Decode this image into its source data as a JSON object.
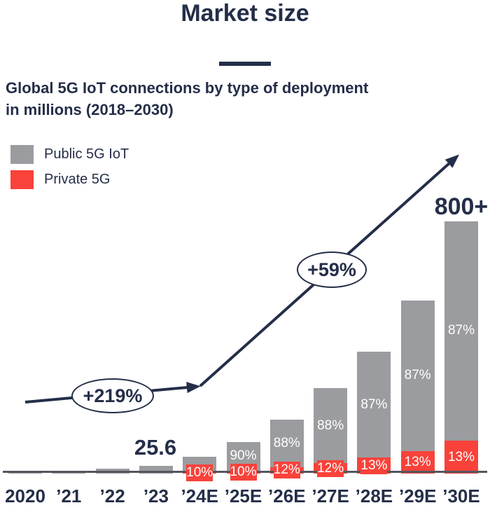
{
  "header": {
    "title": "Market size",
    "subtitle_line1": "Global 5G IoT connections by type of deployment",
    "subtitle_line2": "in millions (2018–2030)"
  },
  "legend": {
    "items": [
      {
        "label": "Public 5G IoT",
        "color": "#9b9c9f"
      },
      {
        "label": "Private 5G",
        "color": "#f8423a"
      }
    ]
  },
  "annotations": {
    "growth_1": "+219%",
    "growth_2": "+59%",
    "value_2023": "25.6",
    "value_2030": "800+"
  },
  "colors": {
    "public_gray": "#9b9c9f",
    "private_red": "#f8423a",
    "ink_navy": "#242e48",
    "axis_gray": "#54565e"
  },
  "chart_data": {
    "type": "bar",
    "stacked": true,
    "title": "Market size",
    "subtitle": "Global 5G IoT connections by type of deployment in millions (2018–2030)",
    "unit": "millions of 5G IoT connections",
    "categories": [
      "2020",
      "’21",
      "’22",
      "’23",
      "’24E",
      "’25E",
      "’26E",
      "’27E",
      "’28E",
      "’29E",
      "’30E"
    ],
    "totals_millions_est": [
      2,
      9,
      16,
      25.6,
      55,
      104,
      178,
      283,
      405,
      575,
      838
    ],
    "series": [
      {
        "name": "Public 5G IoT",
        "color": "#9b9c9f",
        "share_pct": [
          null,
          null,
          null,
          null,
          null,
          90,
          88,
          88,
          87,
          87,
          87
        ],
        "share_labels": [
          null,
          null,
          null,
          null,
          null,
          "90%",
          "88%",
          "88%",
          "87%",
          "87%",
          "87%"
        ]
      },
      {
        "name": "Private 5G",
        "color": "#f8423a",
        "share_pct": [
          null,
          null,
          null,
          null,
          10,
          10,
          12,
          12,
          13,
          13,
          13
        ],
        "share_labels": [
          null,
          null,
          null,
          null,
          "10%",
          "10%",
          "12%",
          "12%",
          "13%",
          "13%",
          "13%"
        ]
      }
    ],
    "labeled_values": {
      "2023": "25.6",
      "2030E": "800+"
    },
    "growth_annotations": [
      {
        "label": "+219%",
        "span": "2020 to ’23"
      },
      {
        "label": "+59%",
        "span": "’24E to ’30E"
      }
    ],
    "axis": {
      "x_labels_shown": true,
      "y_axis_shown": false,
      "gridlines": false
    },
    "legend_position": "top-left"
  }
}
